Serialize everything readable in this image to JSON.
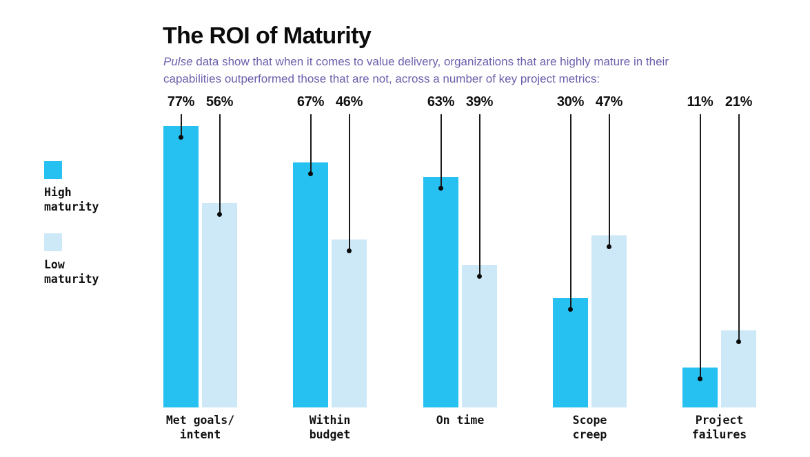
{
  "header": {
    "title": "The ROI of Maturity",
    "subtitle": {
      "italic_word": "Pulse",
      "line1_rest": " data show that when it comes to value delivery, organizations that are highly mature in their",
      "line2": "capabilities outperformed those that are not, across a number of key project metrics:"
    }
  },
  "legend": {
    "items": [
      {
        "name": "High maturity",
        "line1": "High",
        "line2": "maturity",
        "color": "#27c1f1"
      },
      {
        "name": "Low maturity",
        "line1": "Low",
        "line2": "maturity",
        "color": "#cde9f8"
      }
    ]
  },
  "colors": {
    "high_maturity": "#27c1f1",
    "low_maturity": "#cde9f8",
    "subtitle_purple": "#6c5fab",
    "text_black": "#111111",
    "leader_line": "#1a1a1a",
    "background": "#ffffff"
  },
  "chart_data": {
    "type": "bar",
    "title": "The ROI of Maturity",
    "subtitle": "Pulse data show that when it comes to value delivery, organizations that are highly mature in their capabilities outperformed those that are not, across a number of key project metrics:",
    "categories": [
      "Met goals/intent",
      "Within budget",
      "On time",
      "Scope creep",
      "Project failures"
    ],
    "category_lines": [
      [
        "Met goals/",
        "intent"
      ],
      [
        "Within",
        "budget"
      ],
      [
        "On time"
      ],
      [
        "Scope",
        "creep"
      ],
      [
        "Project",
        "failures"
      ]
    ],
    "series": [
      {
        "name": "High maturity",
        "color": "#27c1f1",
        "values": [
          77,
          67,
          63,
          30,
          11
        ]
      },
      {
        "name": "Low maturity",
        "color": "#cde9f8",
        "values": [
          56,
          46,
          39,
          47,
          21
        ]
      }
    ],
    "value_suffix": "%",
    "ylim": [
      0,
      100
    ],
    "grid": false,
    "axis_lines": false,
    "legend_position": "left",
    "annotations": "each bar labeled above with percent value connected by vertical leader line ending in a dot inside the bar top"
  }
}
